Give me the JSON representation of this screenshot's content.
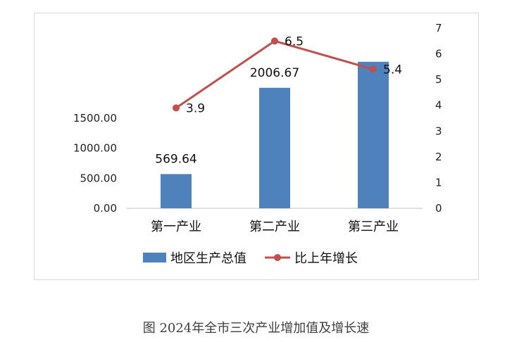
{
  "chart_data": {
    "type": "bar+line",
    "categories": [
      "第一产业",
      "第二产业",
      "第三产业"
    ],
    "series": [
      {
        "name": "地区生产总值",
        "type": "bar",
        "axis": "left",
        "values": [
          569.64,
          2006.67,
          2440.0
        ],
        "labels": [
          "569.64",
          "2006.67",
          ""
        ],
        "color": "#4f81bd"
      },
      {
        "name": "比上年增长",
        "type": "line",
        "axis": "right",
        "values": [
          3.9,
          6.5,
          5.4
        ],
        "labels": [
          "3.9",
          "6.5",
          "5.4"
        ],
        "color": "#c0504d"
      }
    ],
    "y_left": {
      "ylim": [
        0,
        3000
      ],
      "ticks": [
        "0.00",
        "500.00",
        "1000.00",
        "1500.00"
      ]
    },
    "y_right": {
      "ylim": [
        0,
        7
      ],
      "ticks": [
        "0",
        "1",
        "2",
        "3",
        "4",
        "5",
        "6",
        "7"
      ]
    },
    "legend_position": "bottom",
    "grid": false
  },
  "caption": "图 2024年全市三次产业增加值及增长速"
}
